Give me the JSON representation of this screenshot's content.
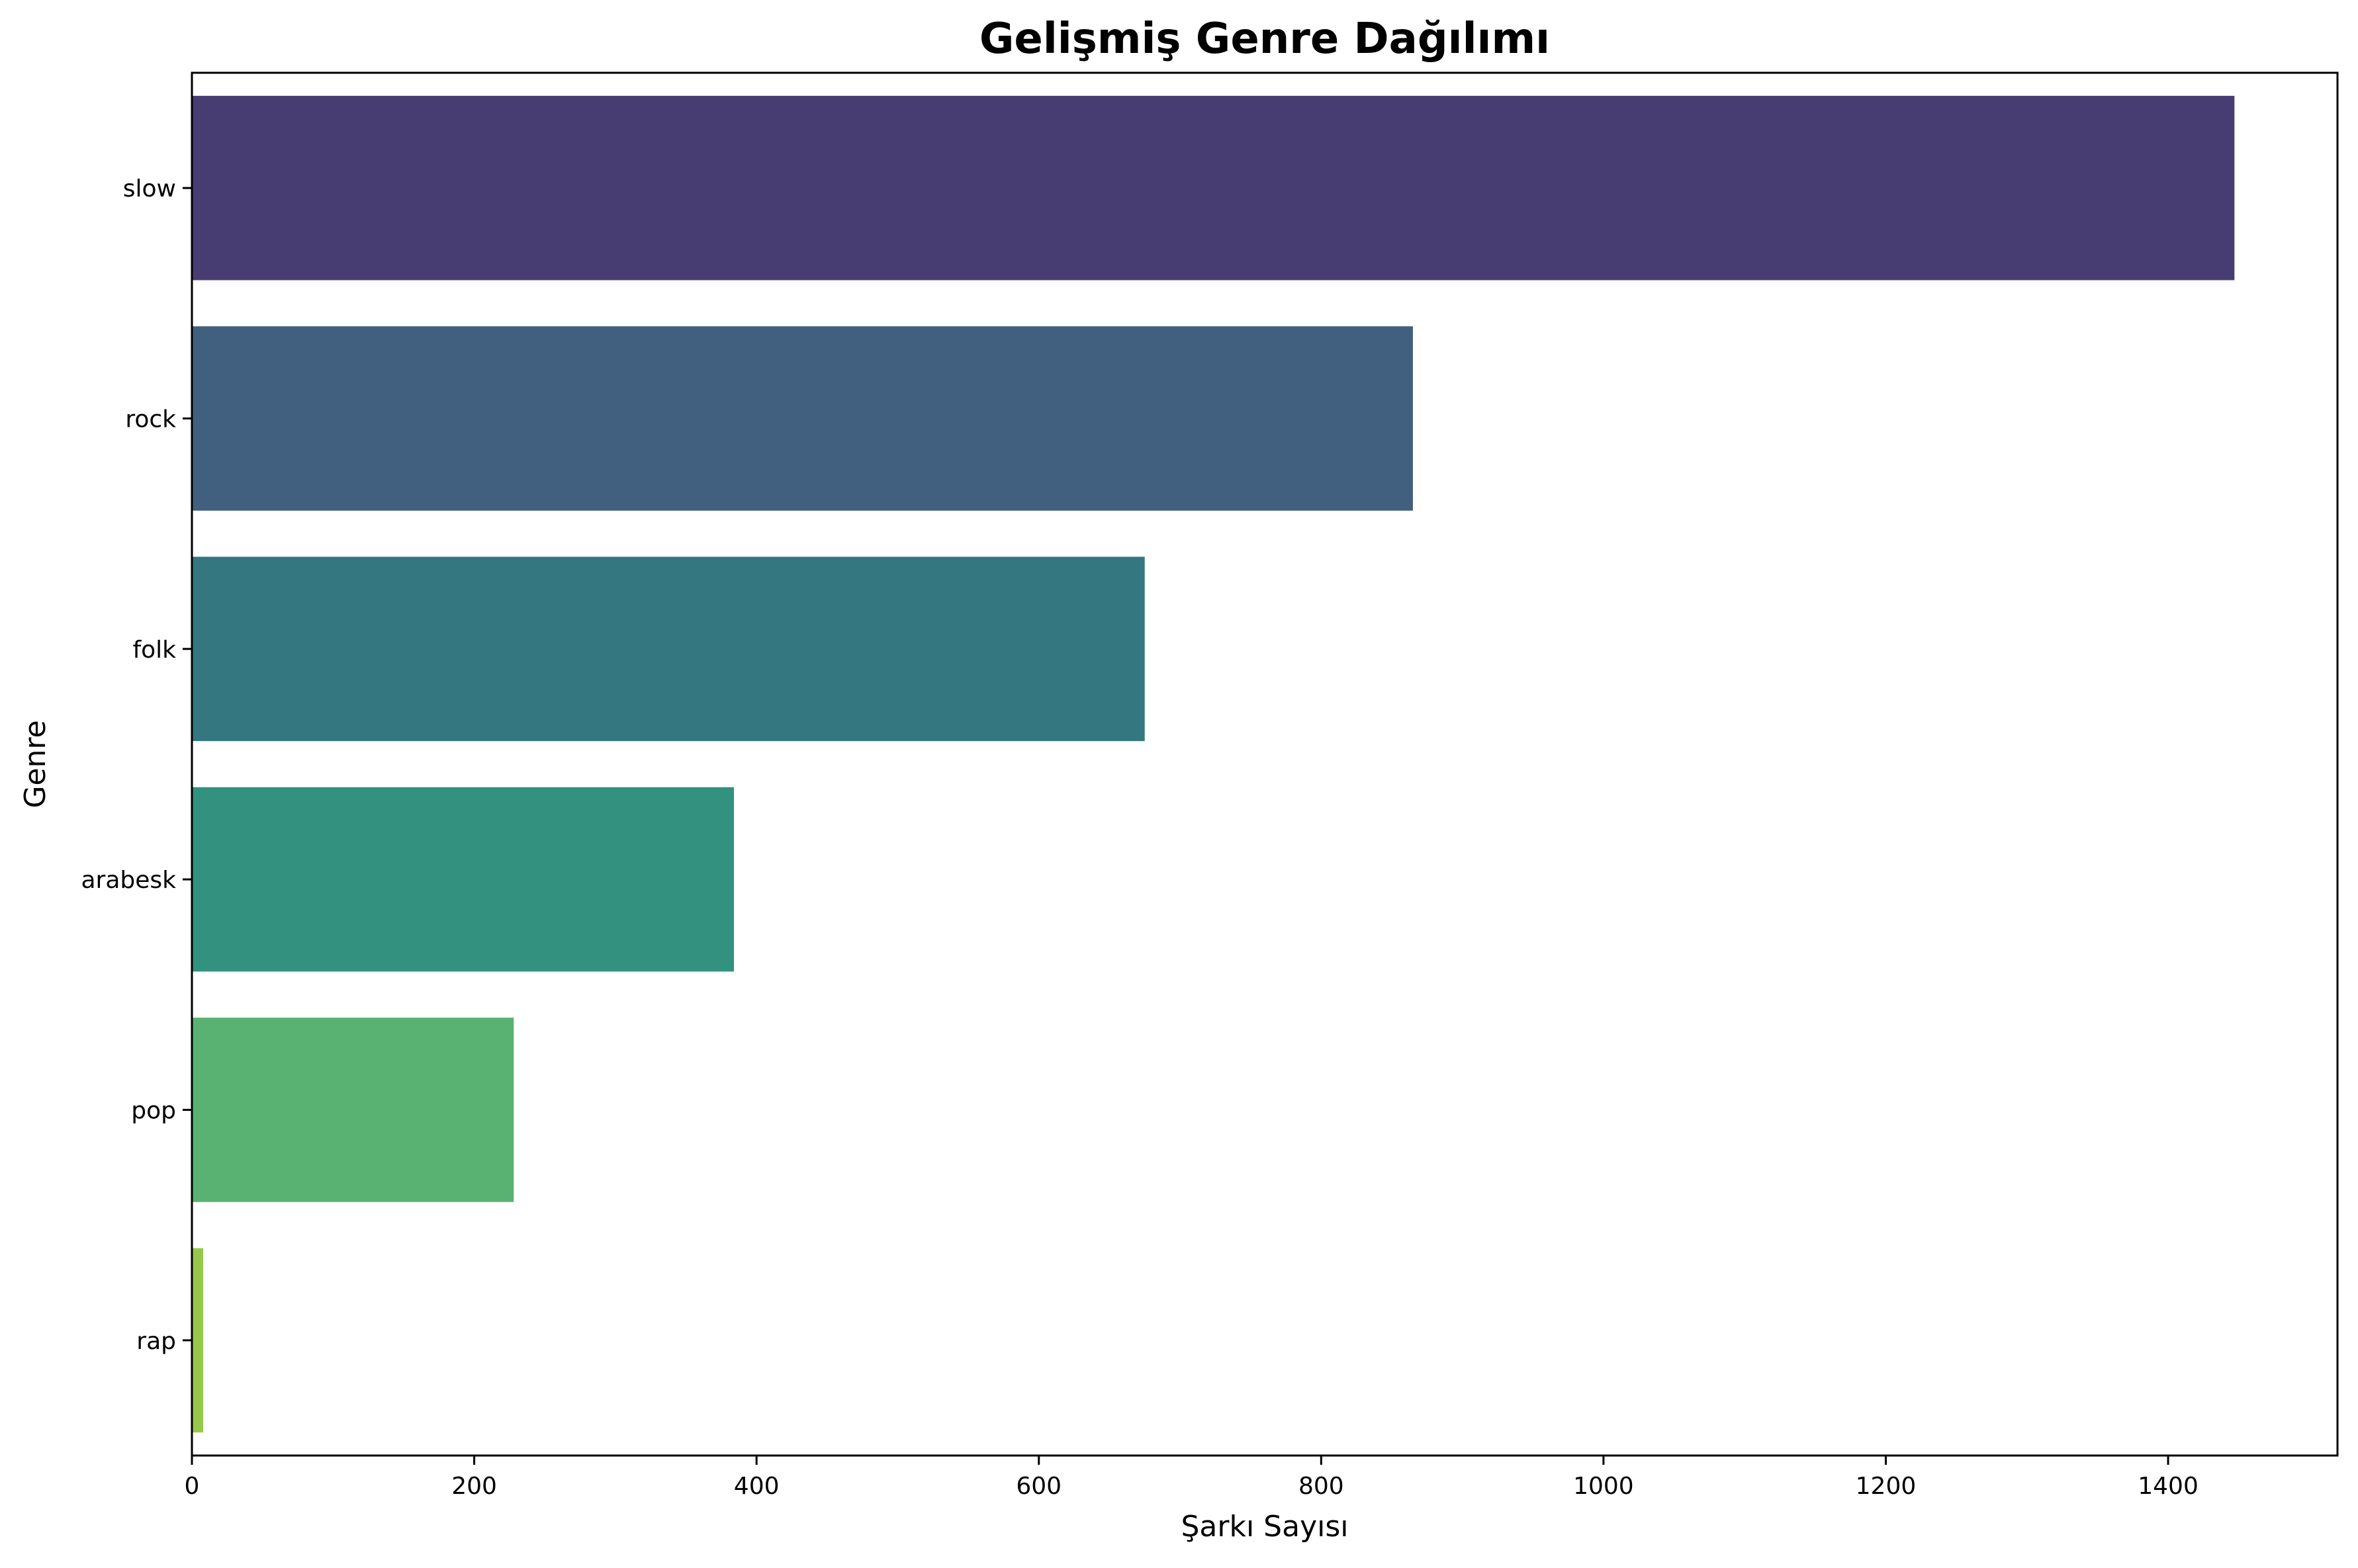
{
  "chart_data": {
    "type": "bar",
    "orientation": "horizontal",
    "title": "Gelişmiş Genre Dağılımı",
    "xlabel": "Şarkı Sayısı",
    "ylabel": "Genre",
    "categories": [
      "slow",
      "rock",
      "folk",
      "arabesk",
      "pop",
      "rap"
    ],
    "values": [
      1447,
      865,
      675,
      384,
      228,
      8
    ],
    "colors": [
      "#483d73",
      "#416080",
      "#357780",
      "#32927f",
      "#5ab272",
      "#98c84b"
    ],
    "xlim": [
      0,
      1520
    ],
    "xticks": [
      0,
      200,
      400,
      600,
      800,
      1000,
      1200,
      1400
    ],
    "grid": false,
    "legend": "none"
  }
}
